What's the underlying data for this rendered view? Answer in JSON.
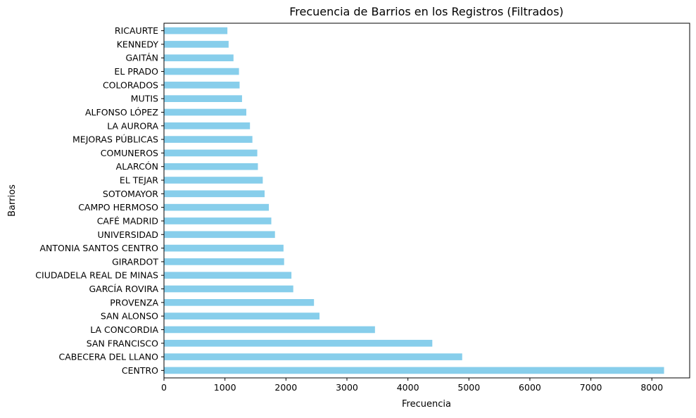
{
  "chart_data": {
    "type": "bar",
    "orientation": "horizontal",
    "title": "Frecuencia de Barrios en los Registros (Filtrados)",
    "xlabel": "Frecuencia",
    "ylabel": "Barrios",
    "xlim": [
      0,
      8620
    ],
    "xticks": [
      0,
      1000,
      2000,
      3000,
      4000,
      5000,
      6000,
      7000,
      8000
    ],
    "xtick_labels": [
      "0",
      "1000",
      "2000",
      "3000",
      "4000",
      "5000",
      "6000",
      "7000",
      "8000"
    ],
    "categories": [
      "CENTRO",
      "CABECERA DEL LLANO",
      "SAN FRANCISCO",
      "LA CONCORDIA",
      "SAN ALONSO",
      "PROVENZA",
      "GARCÍA ROVIRA",
      "CIUDADELA REAL DE MINAS",
      "GIRARDOT",
      "ANTONIA SANTOS CENTRO",
      "UNIVERSIDAD",
      "CAFÉ MADRID",
      "CAMPO HERMOSO",
      "SOTOMAYOR",
      "EL TEJAR",
      "ALARCÓN",
      "COMUNEROS",
      "MEJORAS PÚBLICAS",
      "LA AURORA",
      "ALFONSO LÓPEZ",
      "MUTIS",
      "COLORADOS",
      "EL PRADO",
      "GAITÁN",
      "KENNEDY",
      "RICAURTE"
    ],
    "values": [
      8200,
      4890,
      4400,
      3460,
      2550,
      2460,
      2120,
      2090,
      1970,
      1960,
      1820,
      1760,
      1720,
      1650,
      1620,
      1540,
      1530,
      1450,
      1410,
      1350,
      1280,
      1240,
      1230,
      1140,
      1060,
      1040
    ],
    "bar_color": "#87ceeb",
    "grid": false,
    "legend": "none"
  }
}
